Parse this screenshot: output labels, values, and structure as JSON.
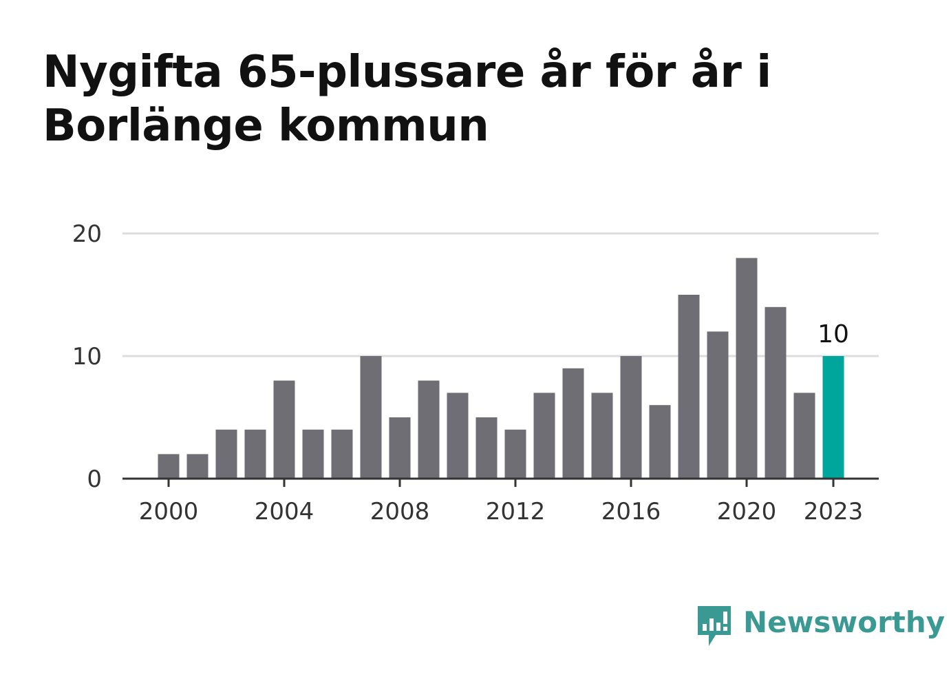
{
  "chart_data": {
    "type": "bar",
    "title": "Nygifta 65-plussare år för år i Borlänge kommun",
    "categories": [
      2000,
      2001,
      2002,
      2003,
      2004,
      2005,
      2006,
      2007,
      2008,
      2009,
      2010,
      2011,
      2012,
      2013,
      2014,
      2015,
      2016,
      2017,
      2018,
      2019,
      2020,
      2021,
      2022,
      2023
    ],
    "values": [
      2,
      2,
      4,
      4,
      8,
      4,
      4,
      10,
      5,
      8,
      7,
      5,
      4,
      7,
      9,
      7,
      10,
      6,
      15,
      12,
      18,
      14,
      7,
      10
    ],
    "xticks": [
      2000,
      2004,
      2008,
      2012,
      2016,
      2020,
      2023
    ],
    "yticks": [
      0,
      10,
      20
    ],
    "ylim": [
      0,
      20
    ],
    "xlabel": "",
    "ylabel": "",
    "highlight": {
      "category": 2023,
      "label": "10"
    },
    "grid": true,
    "colors": {
      "bar": "#6f6e74",
      "highlight": "#00a59c",
      "grid": "#dddddd",
      "axis": "#333333"
    }
  },
  "brand": {
    "name": "Newsworthy",
    "icon": "newsworthy-logo-icon",
    "color": "#3a9a93"
  }
}
